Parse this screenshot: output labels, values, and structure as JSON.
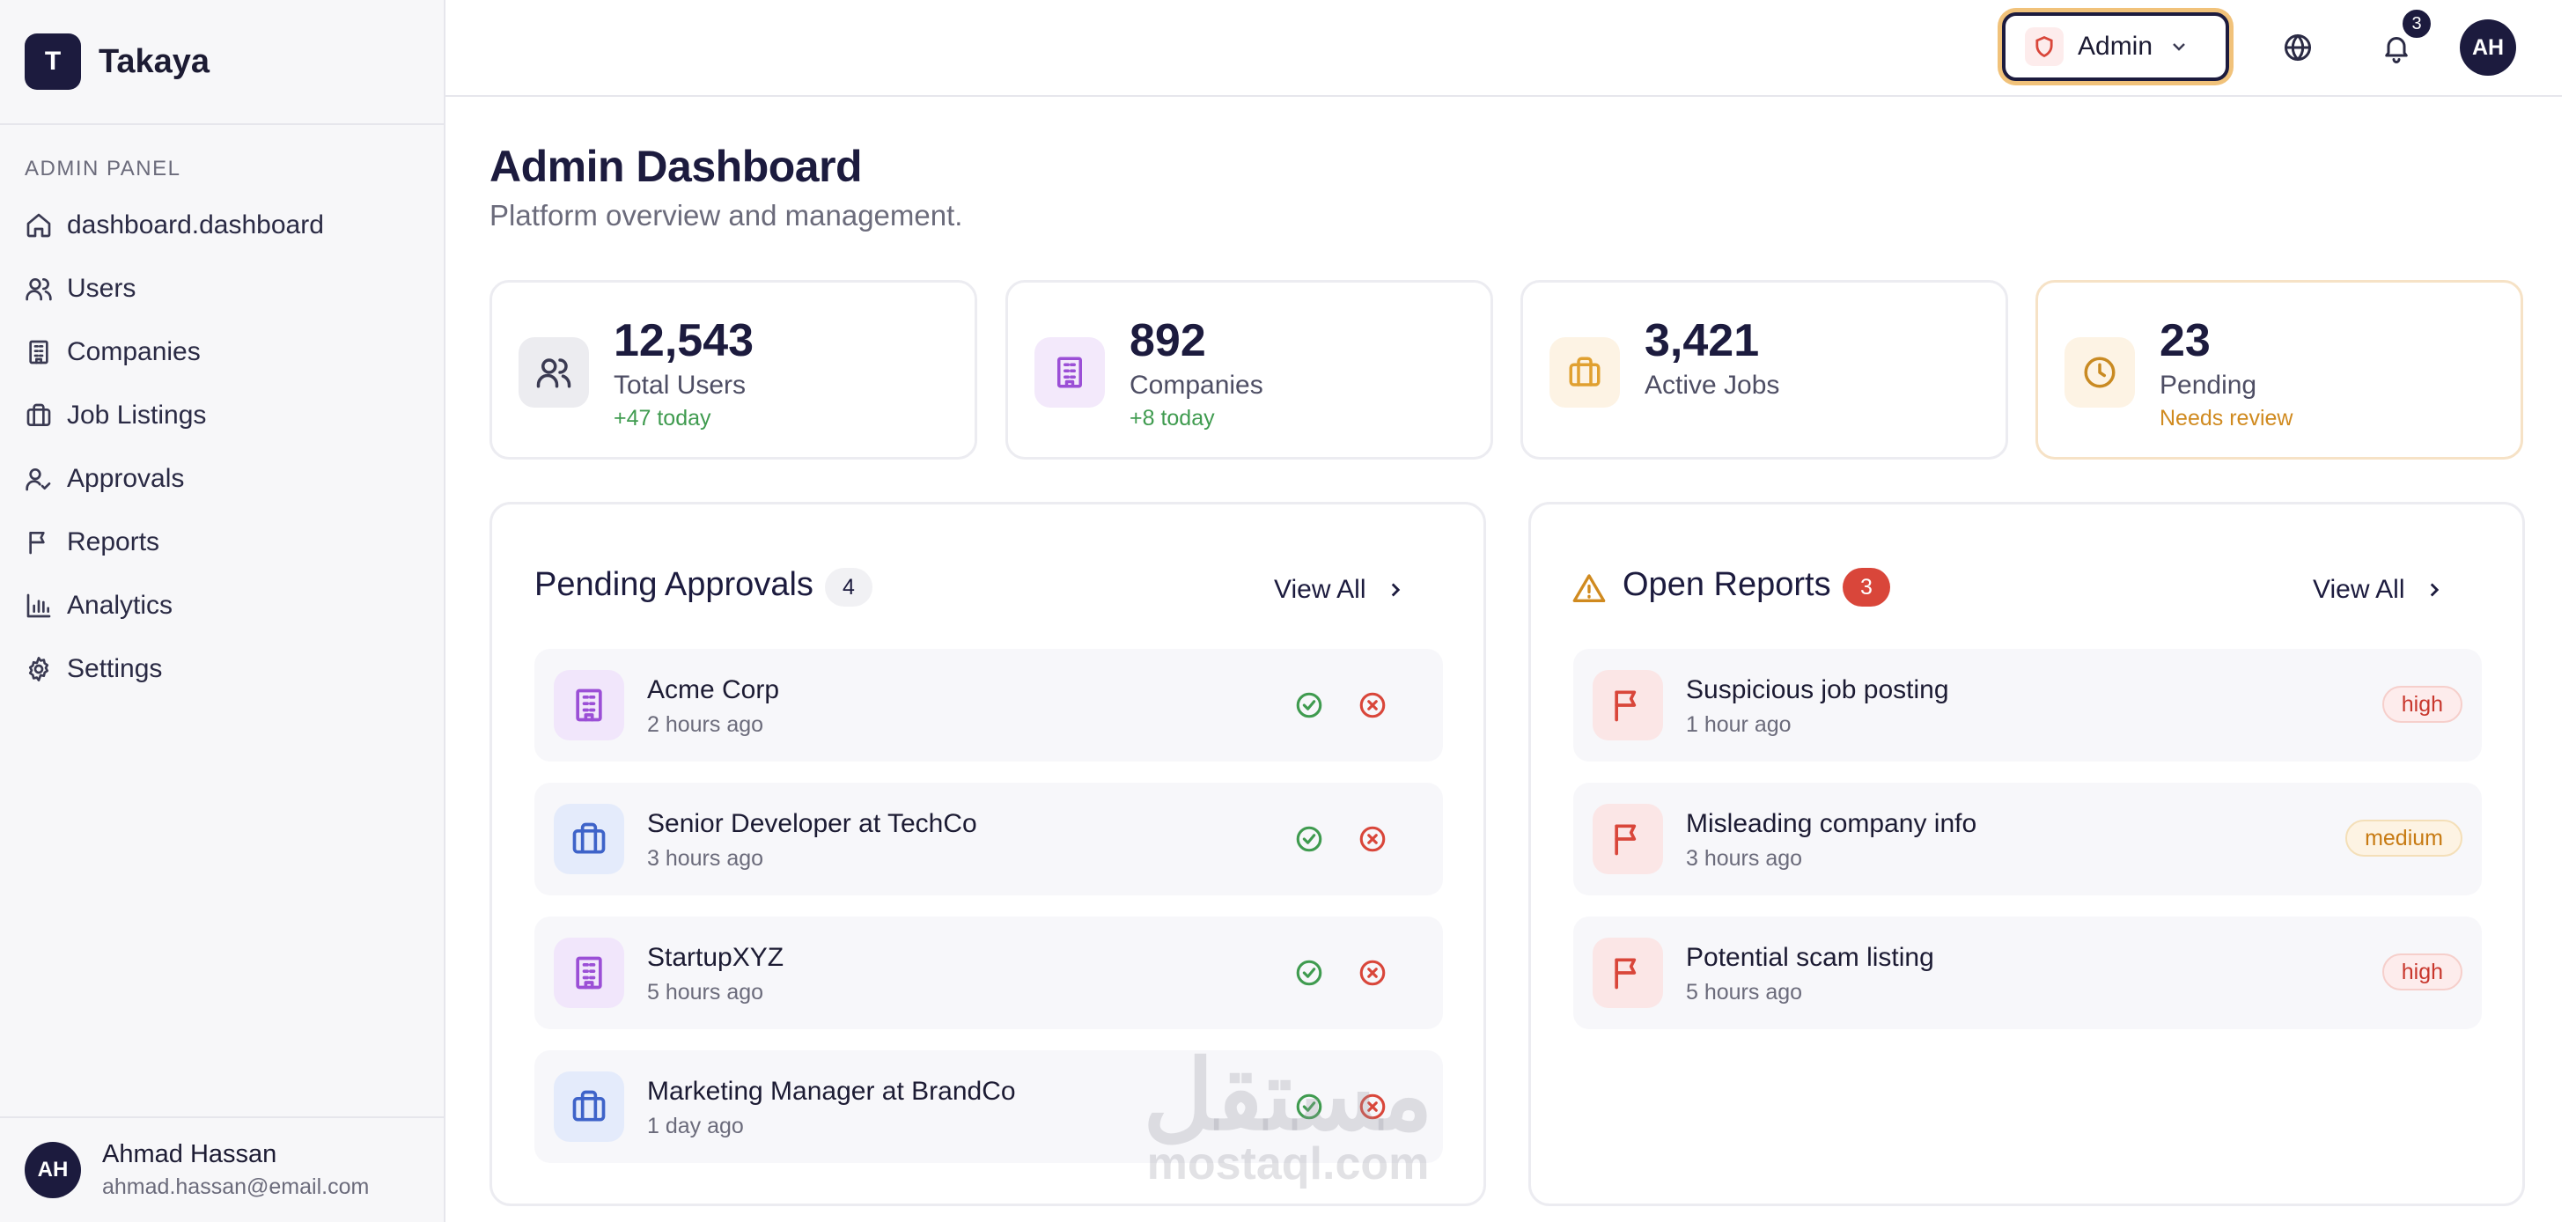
{
  "brand": {
    "logo_letter": "T",
    "name": "Takaya"
  },
  "sidebar": {
    "section_label": "ADMIN PANEL",
    "items": [
      {
        "label": "dashboard.dashboard",
        "icon": "home-icon"
      },
      {
        "label": "Users",
        "icon": "users-icon"
      },
      {
        "label": "Companies",
        "icon": "building-icon"
      },
      {
        "label": "Job Listings",
        "icon": "briefcase-icon"
      },
      {
        "label": "Approvals",
        "icon": "user-check-icon"
      },
      {
        "label": "Reports",
        "icon": "flag-icon"
      },
      {
        "label": "Analytics",
        "icon": "bar-chart-icon"
      },
      {
        "label": "Settings",
        "icon": "gear-icon"
      }
    ],
    "user": {
      "initials": "AH",
      "name": "Ahmad Hassan",
      "email": "ahmad.hassan@email.com"
    }
  },
  "topbar": {
    "role_label": "Admin",
    "notification_count": "3",
    "avatar_initials": "AH"
  },
  "page": {
    "title": "Admin Dashboard",
    "subtitle": "Platform overview and management."
  },
  "stats": [
    {
      "value": "12,543",
      "label": "Total Users",
      "note": "+47 today",
      "note_color": "#3f9b4f",
      "icon": "users-icon"
    },
    {
      "value": "892",
      "label": "Companies",
      "note": "+8 today",
      "note_color": "#3f9b4f",
      "icon": "building-icon"
    },
    {
      "value": "3,421",
      "label": "Active Jobs",
      "note": "",
      "note_color": "#3f9b4f",
      "icon": "briefcase-icon"
    },
    {
      "value": "23",
      "label": "Pending",
      "note": "Needs review",
      "note_color": "#d08a1f",
      "icon": "clock-icon"
    }
  ],
  "approvals": {
    "title": "Pending Approvals",
    "count": "4",
    "view_all": "View All",
    "items": [
      {
        "title": "Acme Corp",
        "time": "2 hours ago",
        "type": "company"
      },
      {
        "title": "Senior Developer at TechCo",
        "time": "3 hours ago",
        "type": "job"
      },
      {
        "title": "StartupXYZ",
        "time": "5 hours ago",
        "type": "company"
      },
      {
        "title": "Marketing Manager at BrandCo",
        "time": "1 day ago",
        "type": "job"
      }
    ]
  },
  "reports": {
    "title": "Open Reports",
    "count": "3",
    "view_all": "View All",
    "items": [
      {
        "title": "Suspicious job posting",
        "time": "1 hour ago",
        "severity": "high"
      },
      {
        "title": "Misleading company info",
        "time": "3 hours ago",
        "severity": "medium"
      },
      {
        "title": "Potential scam listing",
        "time": "5 hours ago",
        "severity": "high"
      }
    ]
  },
  "colors": {
    "primary": "#1c1b3e",
    "success": "#3f9b4f",
    "danger": "#d9463a",
    "warning": "#d08a1f",
    "purple": "#9b4fd6",
    "blue": "#3e63c9"
  },
  "watermark": {
    "arabic": "مستقل",
    "latin": "mostaql.com"
  }
}
